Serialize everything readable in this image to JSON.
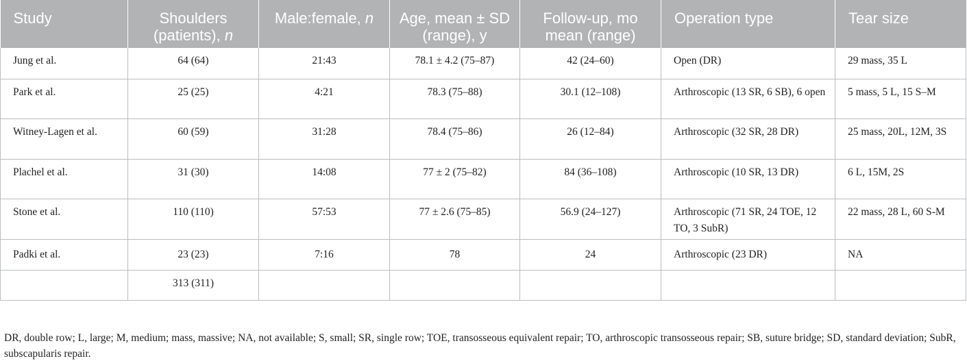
{
  "table": {
    "headers": [
      {
        "main": "Study",
        "italic": ""
      },
      {
        "main": "Shoulders (patients), ",
        "italic": "n"
      },
      {
        "main": "Male:female, ",
        "italic": "n"
      },
      {
        "main": "Age, mean ± SD (range), y",
        "italic": ""
      },
      {
        "main": "Follow-up, mo mean (range)",
        "italic": ""
      },
      {
        "main": "Operation type",
        "italic": ""
      },
      {
        "main": "Tear size",
        "italic": ""
      }
    ],
    "rows": [
      [
        "Jung et al.",
        "64 (64)",
        "21:43",
        "78.1 ± 4.2 (75–87)",
        "42 (24–60)",
        "Open (DR)",
        "29 mass, 35 L"
      ],
      [
        "Park et al.",
        "25 (25)",
        "4:21",
        "78.3 (75–88)",
        "30.1 (12–108)",
        "Arthroscopic (13 SR, 6 SB), 6 open",
        "5 mass, 5 L, 15 S–M"
      ],
      [
        "Witney-Lagen et al.",
        "60 (59)",
        "31:28",
        "78.4 (75–86)",
        "26 (12–84)",
        "Arthroscopic (32 SR, 28 DR)",
        "25 mass, 20L, 12M, 3S"
      ],
      [
        "Plachel et al.",
        "31 (30)",
        "14:08",
        "77 ± 2 (75–82)",
        "84 (36–108)",
        "Arthroscopic (10 SR, 13 DR)",
        "6 L, 15M, 2S"
      ],
      [
        "Stone et al.",
        "110 (110)",
        "57:53",
        "77 ± 2.6 (75–85)",
        "56.9 (24–127)",
        "Arthroscopic (71 SR, 24 TOE, 12 TO, 3 SubR)",
        "22 mass, 28 L, 60 S-M"
      ],
      [
        "Padki et al.",
        "23 (23)",
        "7:16",
        "78",
        "24",
        "Arthroscopic (23 DR)",
        "NA"
      ],
      [
        "",
        "313 (311)",
        "",
        "",
        "",
        "",
        ""
      ]
    ]
  },
  "footnote": "DR, double row; L, large; M, medium; mass, massive; NA, not available; S, small; SR, single row; TOE, transosseous equivalent repair; TO, arthroscopic transosseous repair; SB, suture bridge; SD, standard deviation; SubR, subscapularis repair."
}
